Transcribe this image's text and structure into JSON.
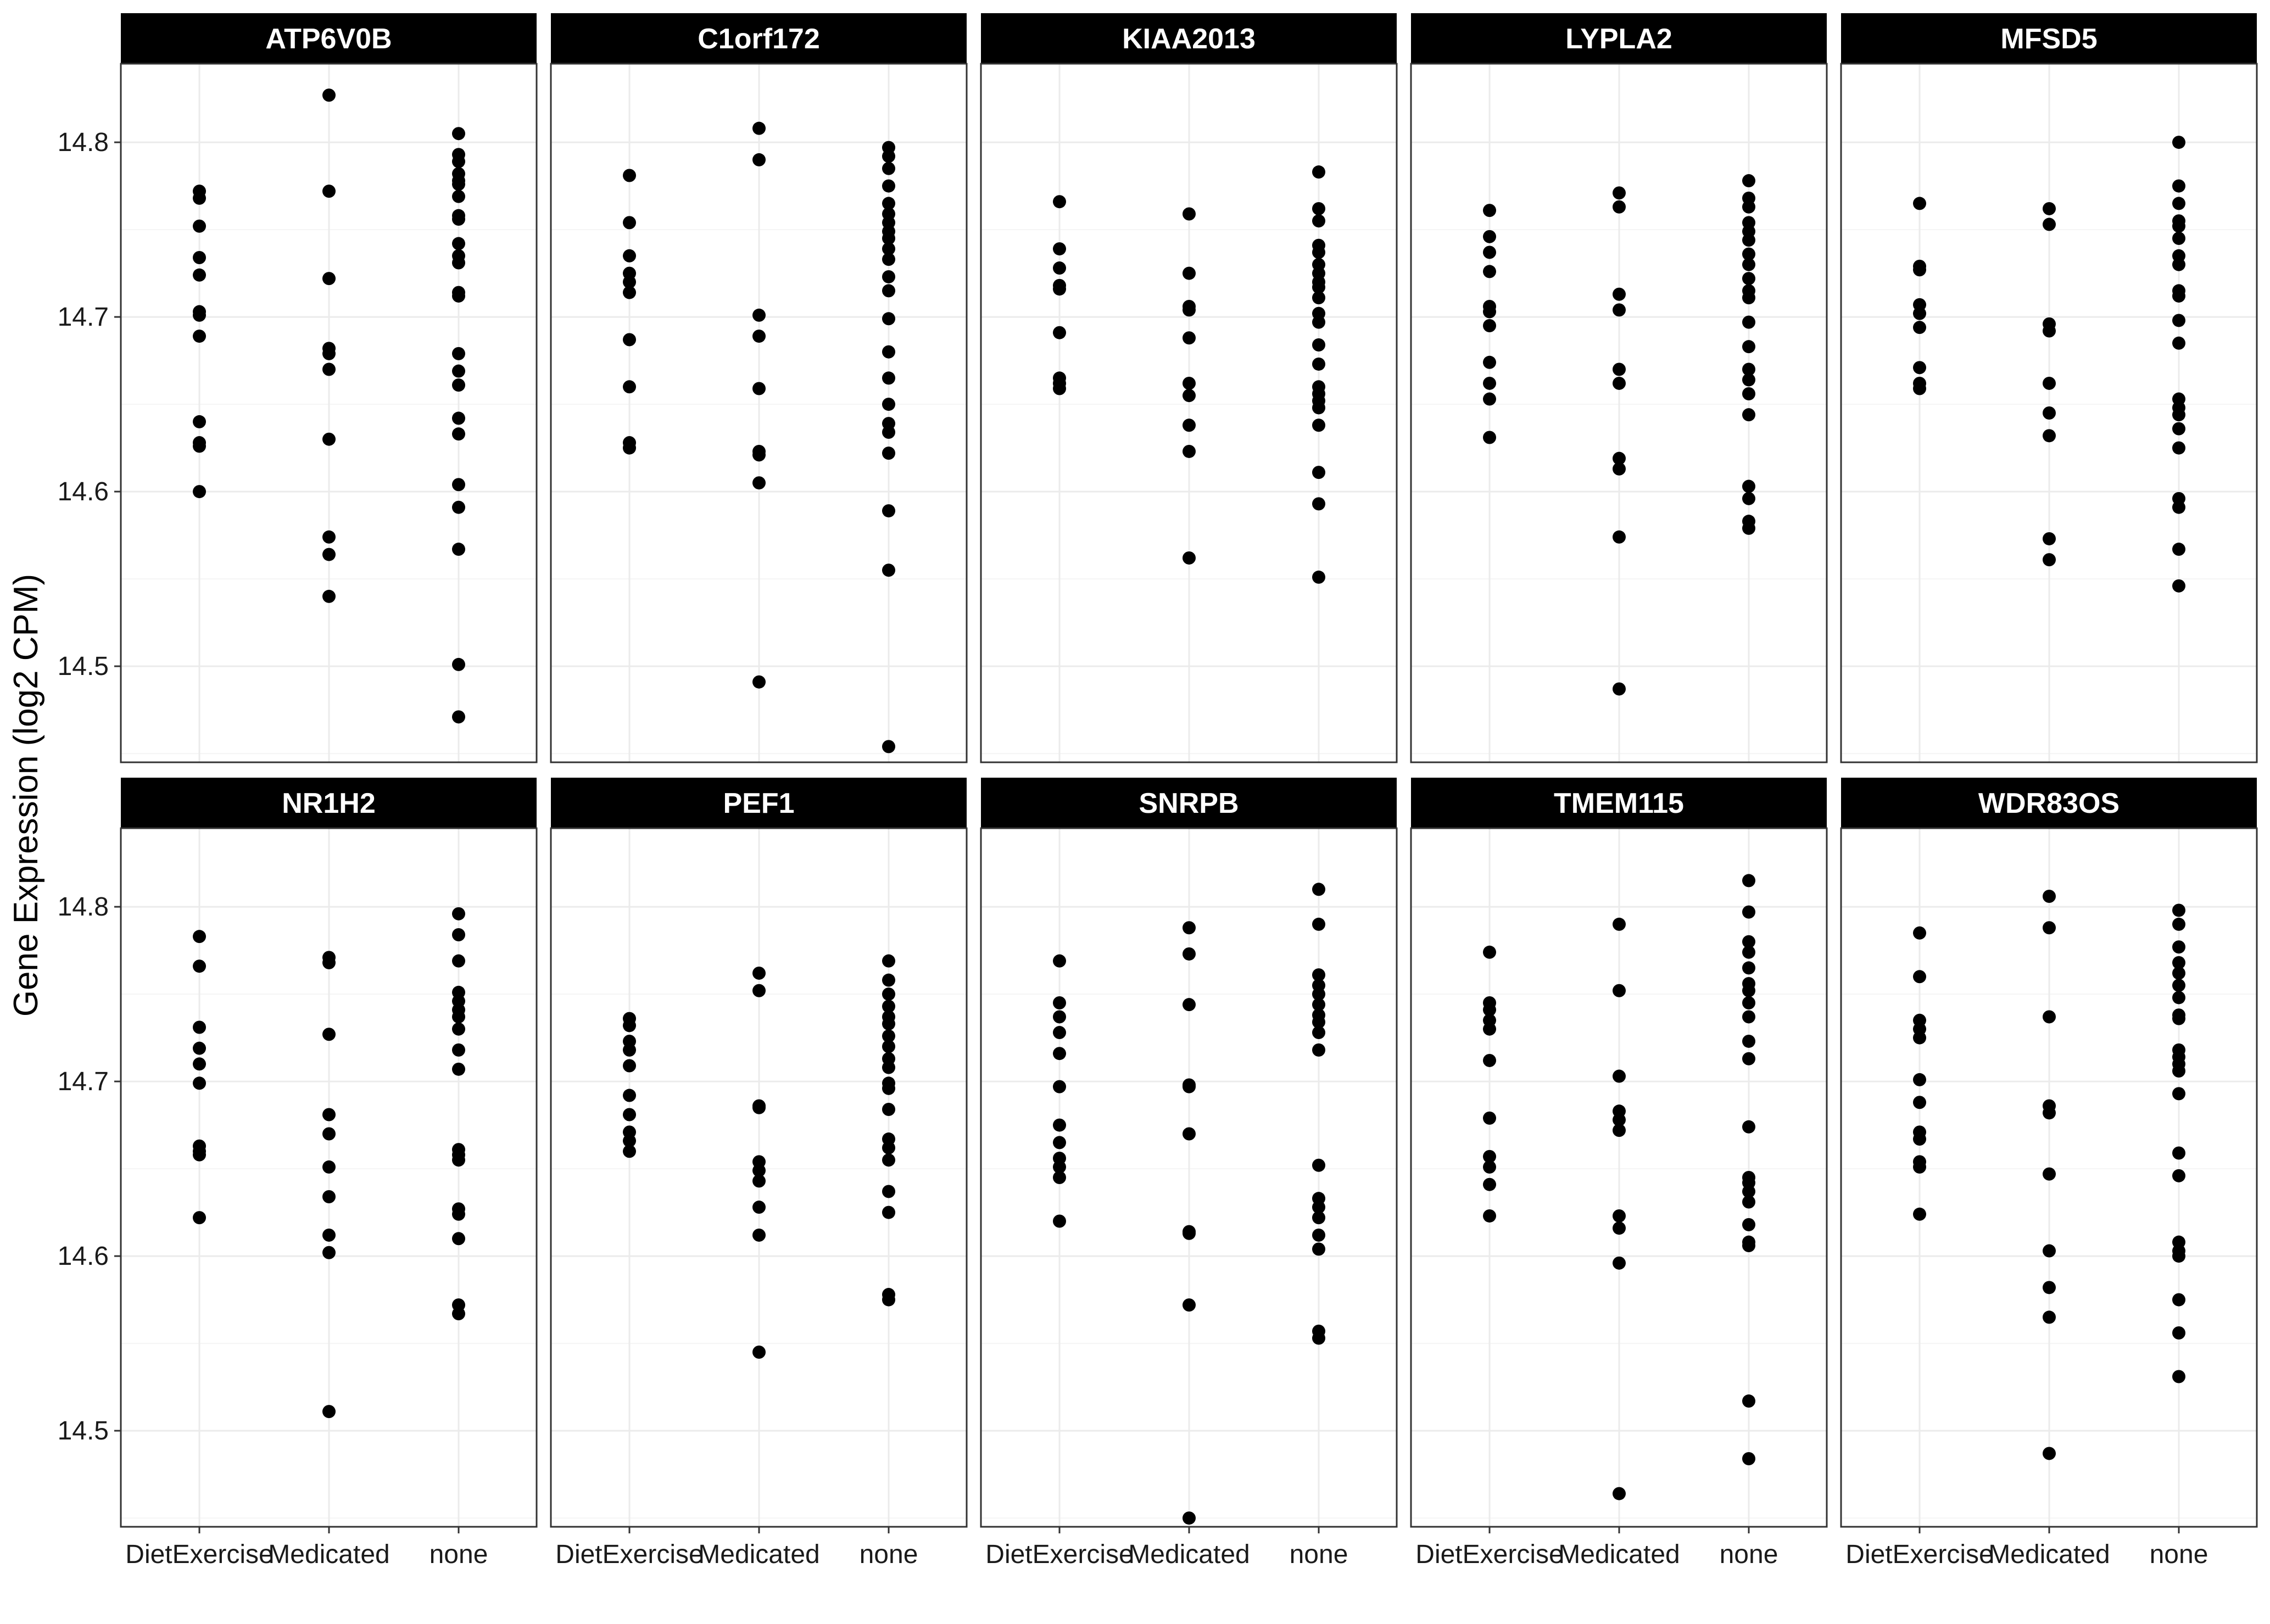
{
  "chart_data": {
    "type": "scatter",
    "ylabel": "Gene Expression (log2 CPM)",
    "xlabel": "",
    "categories": [
      "DietExercise",
      "Medicated",
      "none"
    ],
    "ylim": [
      14.445,
      14.845
    ],
    "yticks": [
      14.5,
      14.6,
      14.7,
      14.8
    ],
    "ytick_labels": [
      "14.5",
      "14.6",
      "14.7",
      "14.8"
    ],
    "grid": true,
    "facet_rows": 2,
    "facet_cols": 5,
    "panels": [
      {
        "gene": "ATP6V0B",
        "series": [
          {
            "category": "DietExercise",
            "values": [
              14.772,
              14.768,
              14.752,
              14.734,
              14.724,
              14.703,
              14.701,
              14.689,
              14.64,
              14.628,
              14.626,
              14.6
            ]
          },
          {
            "category": "Medicated",
            "values": [
              14.827,
              14.772,
              14.722,
              14.682,
              14.679,
              14.67,
              14.63,
              14.574,
              14.564,
              14.54
            ]
          },
          {
            "category": "none",
            "values": [
              14.805,
              14.793,
              14.789,
              14.782,
              14.778,
              14.776,
              14.769,
              14.758,
              14.756,
              14.742,
              14.735,
              14.731,
              14.714,
              14.712,
              14.679,
              14.669,
              14.661,
              14.642,
              14.633,
              14.604,
              14.591,
              14.567,
              14.501,
              14.471
            ]
          }
        ]
      },
      {
        "gene": "C1orf172",
        "series": [
          {
            "category": "DietExercise",
            "values": [
              14.781,
              14.754,
              14.735,
              14.725,
              14.72,
              14.714,
              14.687,
              14.66,
              14.628,
              14.625
            ]
          },
          {
            "category": "Medicated",
            "values": [
              14.808,
              14.79,
              14.701,
              14.689,
              14.659,
              14.623,
              14.621,
              14.605,
              14.491
            ]
          },
          {
            "category": "none",
            "values": [
              14.797,
              14.792,
              14.785,
              14.775,
              14.765,
              14.759,
              14.754,
              14.749,
              14.745,
              14.739,
              14.733,
              14.723,
              14.715,
              14.699,
              14.68,
              14.665,
              14.65,
              14.639,
              14.634,
              14.622,
              14.589,
              14.555,
              14.454
            ]
          }
        ]
      },
      {
        "gene": "KIAA2013",
        "series": [
          {
            "category": "DietExercise",
            "values": [
              14.766,
              14.739,
              14.728,
              14.718,
              14.716,
              14.691,
              14.665,
              14.662,
              14.659
            ]
          },
          {
            "category": "Medicated",
            "values": [
              14.759,
              14.725,
              14.706,
              14.704,
              14.688,
              14.662,
              14.655,
              14.638,
              14.623,
              14.562
            ]
          },
          {
            "category": "none",
            "values": [
              14.783,
              14.762,
              14.755,
              14.741,
              14.737,
              14.73,
              14.725,
              14.72,
              14.717,
              14.711,
              14.702,
              14.697,
              14.684,
              14.673,
              14.66,
              14.656,
              14.652,
              14.648,
              14.638,
              14.611,
              14.593,
              14.551
            ]
          }
        ]
      },
      {
        "gene": "LYPLA2",
        "series": [
          {
            "category": "DietExercise",
            "values": [
              14.761,
              14.746,
              14.737,
              14.726,
              14.706,
              14.703,
              14.695,
              14.674,
              14.662,
              14.653,
              14.631
            ]
          },
          {
            "category": "Medicated",
            "values": [
              14.771,
              14.763,
              14.713,
              14.704,
              14.67,
              14.662,
              14.619,
              14.613,
              14.574,
              14.487
            ]
          },
          {
            "category": "none",
            "values": [
              14.778,
              14.768,
              14.763,
              14.754,
              14.749,
              14.744,
              14.736,
              14.73,
              14.722,
              14.715,
              14.711,
              14.697,
              14.683,
              14.67,
              14.664,
              14.656,
              14.644,
              14.603,
              14.596,
              14.583,
              14.579
            ]
          }
        ]
      },
      {
        "gene": "MFSD5",
        "series": [
          {
            "category": "DietExercise",
            "values": [
              14.765,
              14.729,
              14.727,
              14.707,
              14.702,
              14.694,
              14.671,
              14.662,
              14.659
            ]
          },
          {
            "category": "Medicated",
            "values": [
              14.762,
              14.753,
              14.696,
              14.692,
              14.662,
              14.645,
              14.632,
              14.573,
              14.561
            ]
          },
          {
            "category": "none",
            "values": [
              14.8,
              14.775,
              14.765,
              14.755,
              14.752,
              14.745,
              14.735,
              14.73,
              14.715,
              14.712,
              14.698,
              14.685,
              14.653,
              14.648,
              14.644,
              14.636,
              14.625,
              14.596,
              14.591,
              14.567,
              14.546
            ]
          }
        ]
      },
      {
        "gene": "NR1H2",
        "series": [
          {
            "category": "DietExercise",
            "values": [
              14.783,
              14.766,
              14.731,
              14.719,
              14.71,
              14.699,
              14.663,
              14.66,
              14.658,
              14.622
            ]
          },
          {
            "category": "Medicated",
            "values": [
              14.771,
              14.768,
              14.727,
              14.681,
              14.67,
              14.651,
              14.634,
              14.612,
              14.602,
              14.511
            ]
          },
          {
            "category": "none",
            "values": [
              14.796,
              14.784,
              14.769,
              14.751,
              14.746,
              14.741,
              14.737,
              14.73,
              14.718,
              14.707,
              14.661,
              14.658,
              14.655,
              14.627,
              14.624,
              14.61,
              14.572,
              14.567
            ]
          }
        ]
      },
      {
        "gene": "PEF1",
        "series": [
          {
            "category": "DietExercise",
            "values": [
              14.736,
              14.732,
              14.723,
              14.718,
              14.709,
              14.692,
              14.681,
              14.671,
              14.666,
              14.66
            ]
          },
          {
            "category": "Medicated",
            "values": [
              14.762,
              14.752,
              14.686,
              14.685,
              14.654,
              14.649,
              14.643,
              14.628,
              14.612,
              14.545
            ]
          },
          {
            "category": "none",
            "values": [
              14.769,
              14.758,
              14.75,
              14.743,
              14.737,
              14.733,
              14.726,
              14.72,
              14.713,
              14.708,
              14.699,
              14.696,
              14.684,
              14.667,
              14.662,
              14.655,
              14.637,
              14.625,
              14.578,
              14.575
            ]
          }
        ]
      },
      {
        "gene": "SNRPB",
        "series": [
          {
            "category": "DietExercise",
            "values": [
              14.769,
              14.745,
              14.737,
              14.728,
              14.716,
              14.697,
              14.675,
              14.665,
              14.656,
              14.651,
              14.645,
              14.62
            ]
          },
          {
            "category": "Medicated",
            "values": [
              14.788,
              14.773,
              14.744,
              14.698,
              14.697,
              14.67,
              14.614,
              14.613,
              14.572,
              14.45
            ]
          },
          {
            "category": "none",
            "values": [
              14.81,
              14.79,
              14.761,
              14.755,
              14.75,
              14.744,
              14.738,
              14.734,
              14.728,
              14.718,
              14.652,
              14.633,
              14.628,
              14.622,
              14.612,
              14.604,
              14.557,
              14.553
            ]
          }
        ]
      },
      {
        "gene": "TMEM115",
        "series": [
          {
            "category": "DietExercise",
            "values": [
              14.774,
              14.745,
              14.741,
              14.735,
              14.73,
              14.712,
              14.679,
              14.657,
              14.651,
              14.641,
              14.623
            ]
          },
          {
            "category": "Medicated",
            "values": [
              14.79,
              14.752,
              14.703,
              14.683,
              14.678,
              14.672,
              14.623,
              14.616,
              14.596,
              14.464
            ]
          },
          {
            "category": "none",
            "values": [
              14.815,
              14.797,
              14.78,
              14.774,
              14.765,
              14.756,
              14.752,
              14.745,
              14.737,
              14.723,
              14.713,
              14.674,
              14.645,
              14.642,
              14.637,
              14.631,
              14.618,
              14.608,
              14.606,
              14.517,
              14.484
            ]
          }
        ]
      },
      {
        "gene": "WDR83OS",
        "series": [
          {
            "category": "DietExercise",
            "values": [
              14.785,
              14.76,
              14.735,
              14.73,
              14.725,
              14.701,
              14.688,
              14.671,
              14.667,
              14.654,
              14.651,
              14.624
            ]
          },
          {
            "category": "Medicated",
            "values": [
              14.806,
              14.788,
              14.737,
              14.686,
              14.682,
              14.647,
              14.603,
              14.582,
              14.565,
              14.487
            ]
          },
          {
            "category": "none",
            "values": [
              14.798,
              14.79,
              14.777,
              14.768,
              14.762,
              14.755,
              14.748,
              14.738,
              14.736,
              14.718,
              14.714,
              14.71,
              14.706,
              14.693,
              14.659,
              14.646,
              14.608,
              14.603,
              14.6,
              14.575,
              14.556,
              14.531
            ]
          }
        ]
      }
    ]
  },
  "style": {
    "point_color": "#000000",
    "strip_fill": "#000000",
    "strip_text_color": "#ffffff",
    "panel_border_color": "#333333",
    "grid_major_color": "#ebebeb",
    "grid_minor_color": "#f5f5f5"
  }
}
